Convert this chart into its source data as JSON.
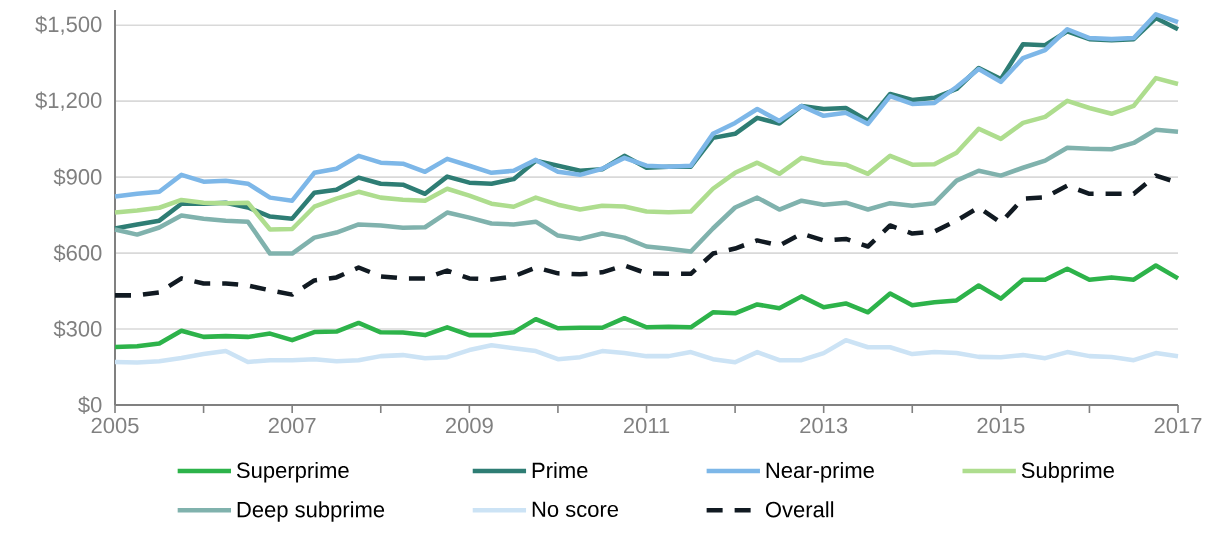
{
  "chart_data": {
    "type": "line",
    "x": [
      2005,
      2005.25,
      2005.5,
      2005.75,
      2006,
      2006.25,
      2006.5,
      2006.75,
      2007,
      2007.25,
      2007.5,
      2007.75,
      2008,
      2008.25,
      2008.5,
      2008.75,
      2009,
      2009.25,
      2009.5,
      2009.75,
      2010,
      2010.25,
      2010.5,
      2010.75,
      2011,
      2011.25,
      2011.5,
      2011.75,
      2012,
      2012.25,
      2012.5,
      2012.75,
      2013,
      2013.25,
      2013.5,
      2013.75,
      2014,
      2014.25,
      2014.5,
      2014.75,
      2015,
      2015.25,
      2015.5,
      2015.75,
      2016,
      2016.25,
      2016.5,
      2016.75,
      2017
    ],
    "series": [
      {
        "name": "Superprime",
        "color": "#2db34a",
        "values": [
          229,
          232,
          243,
          293,
          269,
          272,
          269,
          282,
          256,
          288,
          290,
          324,
          287,
          286,
          276,
          307,
          276,
          276,
          287,
          339,
          303,
          305,
          305,
          343,
          307,
          309,
          307,
          366,
          362,
          397,
          382,
          429,
          386,
          401,
          366,
          440,
          394,
          406,
          413,
          472,
          420,
          495,
          495,
          538,
          495,
          504,
          495,
          551,
          500
        ]
      },
      {
        "name": "Prime",
        "color": "#2e7d74",
        "values": [
          697,
          713,
          728,
          795,
          795,
          799,
          780,
          744,
          736,
          838,
          850,
          898,
          874,
          870,
          834,
          902,
          878,
          874,
          892,
          965,
          945,
          925,
          931,
          984,
          937,
          941,
          941,
          1055,
          1071,
          1134,
          1112,
          1181,
          1169,
          1173,
          1122,
          1228,
          1205,
          1213,
          1248,
          1331,
          1287,
          1425,
          1421,
          1476,
          1445,
          1441,
          1445,
          1528,
          1484
        ]
      },
      {
        "name": "Near-prime",
        "color": "#7db7e8",
        "values": [
          823,
          834,
          842,
          909,
          882,
          886,
          874,
          819,
          807,
          917,
          933,
          984,
          957,
          953,
          921,
          972,
          945,
          917,
          925,
          968,
          921,
          909,
          933,
          976,
          945,
          941,
          945,
          1071,
          1114,
          1169,
          1122,
          1181,
          1142,
          1154,
          1110,
          1220,
          1189,
          1193,
          1256,
          1327,
          1276,
          1370,
          1402,
          1484,
          1449,
          1445,
          1449,
          1543,
          1512
        ]
      },
      {
        "name": "Subprime",
        "color": "#aedd8e",
        "values": [
          760,
          768,
          779,
          810,
          799,
          797,
          799,
          693,
          695,
          783,
          815,
          842,
          819,
          811,
          807,
          854,
          827,
          795,
          783,
          819,
          791,
          772,
          787,
          784,
          764,
          761,
          764,
          854,
          917,
          957,
          913,
          976,
          957,
          949,
          913,
          984,
          949,
          951,
          996,
          1091,
          1051,
          1114,
          1138,
          1201,
          1173,
          1150,
          1181,
          1291,
          1268
        ]
      },
      {
        "name": "Deep subprime",
        "color": "#80b2ad",
        "values": [
          693,
          673,
          701,
          748,
          736,
          728,
          724,
          598,
          598,
          661,
          681,
          713,
          709,
          700,
          702,
          760,
          740,
          717,
          713,
          724,
          669,
          656,
          677,
          661,
          626,
          617,
          606,
          697,
          780,
          819,
          772,
          807,
          791,
          799,
          772,
          797,
          787,
          797,
          886,
          925,
          906,
          937,
          965,
          1016,
          1012,
          1010,
          1035,
          1087,
          1079
        ]
      },
      {
        "name": "No score",
        "color": "#cce3f5",
        "values": [
          170,
          168,
          173,
          186,
          201,
          213,
          170,
          177,
          177,
          181,
          173,
          177,
          193,
          197,
          185,
          189,
          217,
          236,
          224,
          213,
          181,
          189,
          213,
          205,
          193,
          193,
          209,
          181,
          169,
          209,
          177,
          177,
          205,
          256,
          228,
          228,
          201,
          209,
          205,
          190,
          189,
          197,
          185,
          209,
          193,
          190,
          177,
          205,
          193
        ]
      },
      {
        "name": "Overall",
        "color": "#111a22",
        "line_style": "dashed",
        "values": [
          433,
          433,
          445,
          500,
          480,
          480,
          472,
          453,
          436,
          492,
          504,
          543,
          508,
          500,
          500,
          531,
          500,
          496,
          508,
          543,
          520,
          516,
          524,
          551,
          520,
          518,
          518,
          598,
          618,
          650,
          630,
          677,
          650,
          656,
          626,
          709,
          677,
          685,
          728,
          780,
          720,
          815,
          820,
          866,
          834,
          834,
          834,
          906,
          878
        ]
      }
    ],
    "xlim": [
      2005,
      2017
    ],
    "xticks": [
      2005,
      {
        "value": 2006,
        "label": null
      },
      2007,
      {
        "value": 2008,
        "label": null
      },
      2009,
      {
        "value": 2010,
        "label": null
      },
      2011,
      {
        "value": 2012,
        "label": null
      },
      2013,
      {
        "value": 2014,
        "label": null
      },
      2015,
      {
        "value": 2016,
        "label": null
      },
      2017
    ],
    "ylim": [
      0,
      1560
    ],
    "yticks": [
      {
        "value": 0,
        "label": "$0"
      },
      {
        "value": 300,
        "label": "$300"
      },
      {
        "value": 600,
        "label": "$600"
      },
      {
        "value": 900,
        "label": "$900"
      },
      {
        "value": 1200,
        "label": "$1,200"
      },
      {
        "value": 1500,
        "label": "$1,500"
      }
    ],
    "grid": "y",
    "legend": "bottom"
  }
}
